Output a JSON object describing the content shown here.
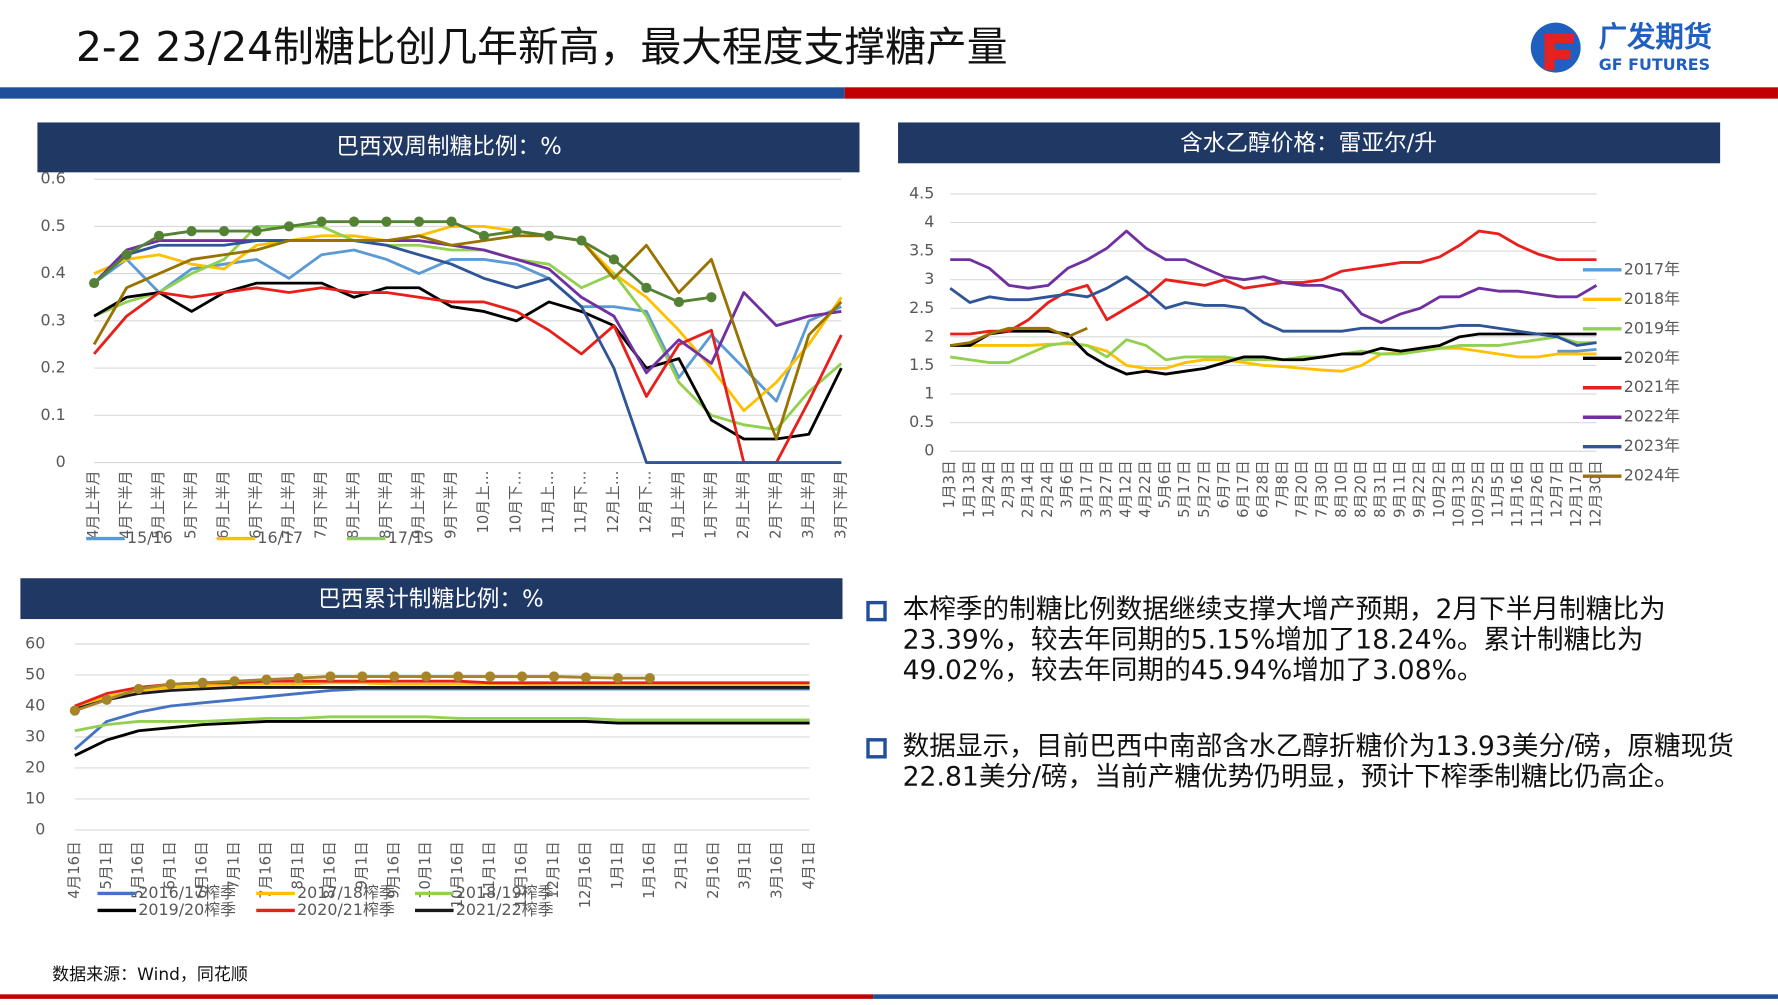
{
  "header": {
    "title": "2-2 23/24制糖比创几年新高，最大程度支撑糖产量",
    "logo_name": "广发期货",
    "logo_en": "GF FUTURES"
  },
  "bullets": [
    "本榨季的制糖比例数据继续支撑大增产预期，2月下半月制糖比为23.39%，较去年同期的5.15%增加了18.24%。累计制糖比为49.02%，较去年同期的45.94%增加了3.08%。",
    "数据显示，目前巴西中南部含水乙醇折糖价为13.93美分/磅，原糖现货22.81美分/磅，当前产糖优势仍明显，预计下榨季制糖比仍高企。"
  ],
  "source": "数据来源：Wind，同花顺",
  "chart_data": [
    {
      "type": "line",
      "title": "巴西双周制糖比例：%",
      "legend": "bottom",
      "categories": [
        "4月上半月",
        "4月下半月",
        "5月上半月",
        "5月下半月",
        "6月上半月",
        "6月下半月",
        "7月上半月",
        "7月下半月",
        "8月上半月",
        "8月下半月",
        "9月上半月",
        "9月下半月",
        "10月上…",
        "10月下…",
        "11月上…",
        "11月下…",
        "12月上…",
        "12月下…",
        "1月上半月",
        "1月下半月",
        "2月上半月",
        "2月下半月",
        "3月上半月",
        "3月下半月"
      ],
      "ylim": [
        0,
        0.6
      ],
      "yticks": [
        0,
        0.1,
        0.2,
        0.3,
        0.4,
        0.5,
        0.6
      ],
      "series": [
        {
          "name": "15/16",
          "color": "#5b9bd5",
          "values": [
            0.38,
            0.43,
            0.36,
            0.41,
            0.42,
            0.43,
            0.39,
            0.44,
            0.45,
            0.43,
            0.4,
            0.43,
            0.43,
            0.42,
            0.39,
            0.33,
            0.33,
            0.32,
            0.18,
            0.27,
            0.2,
            0.13,
            0.3,
            0.33
          ]
        },
        {
          "name": "16/17",
          "color": "#ffc000",
          "values": [
            0.4,
            0.43,
            0.44,
            0.42,
            0.41,
            0.46,
            0.47,
            0.48,
            0.48,
            0.47,
            0.48,
            0.5,
            0.5,
            0.49,
            0.48,
            0.47,
            0.4,
            0.35,
            0.28,
            0.2,
            0.11,
            0.17,
            0.25,
            0.35
          ]
        },
        {
          "name": "17/1S",
          "color": "#92d050",
          "values": [
            0.31,
            0.34,
            0.36,
            0.4,
            0.43,
            0.5,
            0.5,
            0.5,
            0.47,
            0.46,
            0.46,
            0.45,
            0.45,
            0.43,
            0.42,
            0.37,
            0.4,
            0.31,
            0.17,
            0.1,
            0.08,
            0.07,
            0.15,
            0.21
          ]
        },
        {
          "color": "#000000",
          "values": [
            0.31,
            0.35,
            0.36,
            0.32,
            0.36,
            0.38,
            0.38,
            0.38,
            0.35,
            0.37,
            0.37,
            0.33,
            0.32,
            0.3,
            0.34,
            0.32,
            0.29,
            0.2,
            0.22,
            0.09,
            0.05,
            0.05,
            0.06,
            0.2
          ]
        },
        {
          "color": "#e8201c",
          "values": [
            0.23,
            0.31,
            0.36,
            0.35,
            0.36,
            0.37,
            0.36,
            0.37,
            0.36,
            0.36,
            0.35,
            0.34,
            0.34,
            0.32,
            0.28,
            0.23,
            0.29,
            0.14,
            0.25,
            0.28,
            0,
            0,
            0.13,
            0.27
          ]
        },
        {
          "color": "#7030a0",
          "values": [
            0.38,
            0.45,
            0.47,
            0.47,
            0.47,
            0.47,
            0.47,
            0.47,
            0.47,
            0.47,
            0.47,
            0.46,
            0.45,
            0.43,
            0.41,
            0.35,
            0.31,
            0.19,
            0.26,
            0.21,
            0.36,
            0.29,
            0.31,
            0.32
          ]
        },
        {
          "color": "#2f5597",
          "values": [
            0.38,
            0.44,
            0.46,
            0.46,
            0.46,
            0.47,
            0.47,
            0.47,
            0.47,
            0.46,
            0.44,
            0.42,
            0.39,
            0.37,
            0.39,
            0.33,
            0.2,
            0,
            0,
            0,
            0,
            0,
            0,
            0
          ]
        },
        {
          "color": "#997300",
          "values": [
            0.25,
            0.37,
            0.4,
            0.43,
            0.44,
            0.45,
            0.47,
            0.47,
            0.47,
            0.47,
            0.48,
            0.46,
            0.47,
            0.48,
            0.48,
            0.47,
            0.39,
            0.46,
            0.36,
            0.43,
            0.23,
            0.05,
            0.27,
            0.34
          ]
        },
        {
          "color": "#548235",
          "marker": "circle",
          "values": [
            0.38,
            0.44,
            0.48,
            0.49,
            0.49,
            0.49,
            0.5,
            0.51,
            0.51,
            0.51,
            0.51,
            0.51,
            0.48,
            0.49,
            0.48,
            0.47,
            0.43,
            0.37,
            0.34,
            0.35,
            null,
            null,
            null,
            null
          ]
        }
      ]
    },
    {
      "type": "line",
      "title": "含水乙醇价格：雷亚尔/升",
      "legend": "right",
      "categories": [
        "1月3日",
        "1月13日",
        "1月24日",
        "2月3日",
        "2月14日",
        "2月24日",
        "3月6日",
        "3月17日",
        "3月27日",
        "4月12日",
        "4月22日",
        "5月6日",
        "5月17日",
        "5月27日",
        "6月7日",
        "6月17日",
        "6月28日",
        "7月8日",
        "7月20日",
        "7月30日",
        "8月10日",
        "8月20日",
        "8月31日",
        "9月11日",
        "9月22日",
        "10月2日",
        "10月13日",
        "10月25日",
        "11月5日",
        "11月16日",
        "11月26日",
        "12月7日",
        "12月17日",
        "12月30日"
      ],
      "ylim": [
        0,
        4.5
      ],
      "yticks": [
        0,
        0.5,
        1,
        1.5,
        2,
        2.5,
        3,
        3.5,
        4,
        4.5
      ],
      "series": [
        {
          "name": "2017年",
          "color": "#5b9bd5",
          "values": [
            null,
            null,
            null,
            null,
            null,
            null,
            null,
            null,
            null,
            null,
            null,
            null,
            null,
            null,
            null,
            null,
            null,
            null,
            null,
            null,
            null,
            null,
            null,
            null,
            null,
            null,
            null,
            null,
            null,
            null,
            null,
            1.75,
            1.75,
            1.78
          ]
        },
        {
          "name": "2018年",
          "color": "#ffc000",
          "values": [
            1.85,
            1.85,
            1.85,
            1.85,
            1.85,
            1.87,
            1.88,
            1.85,
            1.75,
            1.5,
            1.45,
            1.45,
            1.55,
            1.6,
            1.6,
            1.55,
            1.5,
            1.48,
            1.45,
            1.42,
            1.4,
            1.5,
            1.7,
            1.72,
            1.75,
            1.8,
            1.8,
            1.75,
            1.7,
            1.65,
            1.65,
            1.7,
            1.7,
            1.7
          ]
        },
        {
          "name": "2019年",
          "color": "#92d050",
          "values": [
            1.65,
            1.6,
            1.55,
            1.55,
            1.7,
            1.85,
            1.9,
            1.85,
            1.65,
            1.95,
            1.85,
            1.6,
            1.65,
            1.65,
            1.65,
            1.6,
            1.6,
            1.6,
            1.65,
            1.65,
            1.7,
            1.75,
            1.7,
            1.7,
            1.75,
            1.8,
            1.85,
            1.85,
            1.85,
            1.9,
            1.95,
            2.0,
            1.9,
            1.9
          ]
        },
        {
          "name": "2020年",
          "color": "#000000",
          "values": [
            1.85,
            1.85,
            2.05,
            2.1,
            2.1,
            2.1,
            2.05,
            1.7,
            1.5,
            1.35,
            1.4,
            1.35,
            1.4,
            1.45,
            1.55,
            1.65,
            1.65,
            1.6,
            1.6,
            1.65,
            1.7,
            1.7,
            1.8,
            1.75,
            1.8,
            1.85,
            2.0,
            2.05,
            2.05,
            2.05,
            2.05,
            2.05,
            2.05,
            2.05
          ]
        },
        {
          "name": "2021年",
          "color": "#e8201c",
          "values": [
            2.05,
            2.05,
            2.1,
            2.1,
            2.3,
            2.6,
            2.8,
            2.9,
            2.3,
            2.5,
            2.7,
            3.0,
            2.95,
            2.9,
            3.0,
            2.85,
            2.9,
            2.95,
            2.95,
            3.0,
            3.15,
            3.2,
            3.25,
            3.3,
            3.3,
            3.4,
            3.6,
            3.85,
            3.8,
            3.6,
            3.45,
            3.35,
            3.35,
            3.35
          ]
        },
        {
          "name": "2022年",
          "color": "#7030a0",
          "values": [
            3.35,
            3.35,
            3.2,
            2.9,
            2.85,
            2.9,
            3.2,
            3.35,
            3.55,
            3.85,
            3.55,
            3.35,
            3.35,
            3.2,
            3.05,
            3.0,
            3.05,
            2.95,
            2.9,
            2.9,
            2.8,
            2.4,
            2.25,
            2.4,
            2.5,
            2.7,
            2.7,
            2.85,
            2.8,
            2.8,
            2.75,
            2.7,
            2.7,
            2.9
          ]
        },
        {
          "name": "2023年",
          "color": "#2f5597",
          "values": [
            2.85,
            2.6,
            2.7,
            2.65,
            2.65,
            2.7,
            2.75,
            2.7,
            2.85,
            3.05,
            2.8,
            2.5,
            2.6,
            2.55,
            2.55,
            2.5,
            2.25,
            2.1,
            2.1,
            2.1,
            2.1,
            2.15,
            2.15,
            2.15,
            2.15,
            2.15,
            2.2,
            2.2,
            2.15,
            2.1,
            2.05,
            2.0,
            1.85,
            1.9
          ]
        },
        {
          "name": "2024年",
          "color": "#997300",
          "values": [
            1.85,
            1.9,
            2.05,
            2.15,
            2.15,
            2.15,
            2.0,
            2.15,
            null,
            null,
            null,
            null,
            null,
            null,
            null,
            null,
            null,
            null,
            null,
            null,
            null,
            null,
            null,
            null,
            null,
            null,
            null,
            null,
            null,
            null,
            null,
            null,
            null,
            null
          ]
        }
      ]
    },
    {
      "type": "line",
      "title": "巴西累计制糖比例：%",
      "legend": "bottom",
      "categories": [
        "4月16日",
        "5月1日",
        "5月16日",
        "6月1日",
        "6月16日",
        "7月1日",
        "7月16日",
        "8月1日",
        "8月16日",
        "9月1日",
        "9月16日",
        "10月1日",
        "10月16日",
        "11月1日",
        "11月16日",
        "12月1日",
        "12月16日",
        "1月1日",
        "1月16日",
        "2月1日",
        "2月16日",
        "3月1日",
        "3月16日",
        "4月1日"
      ],
      "ylim": [
        0,
        60
      ],
      "yticks": [
        0,
        10,
        20,
        30,
        40,
        50,
        60
      ],
      "series": [
        {
          "name": "2016/17榨季",
          "color": "#4472c4",
          "values": [
            26,
            35,
            38,
            40,
            41,
            42,
            43,
            44,
            45,
            45.5,
            45.5,
            45.5,
            45.5,
            45.5,
            45.5,
            45.5,
            45.5,
            45.5,
            45.5,
            45.5,
            45.5,
            45.5,
            45.5,
            45.5
          ]
        },
        {
          "name": "2017/18榨季",
          "color": "#ffc000",
          "values": [
            40,
            43,
            45,
            46,
            46.5,
            47,
            47,
            47,
            47.5,
            47.5,
            47,
            47,
            47,
            47,
            47,
            46.5,
            46.5,
            46.5,
            46.5,
            46.5,
            46.5,
            46.5,
            46.5,
            46.5
          ]
        },
        {
          "name": "2018/19榨季",
          "color": "#92d050",
          "values": [
            32,
            34,
            35,
            35,
            35,
            35.5,
            36,
            36,
            36.5,
            36.5,
            36.5,
            36.5,
            36,
            36,
            36,
            36,
            36,
            35.5,
            35.5,
            35.5,
            35.5,
            35.5,
            35.5,
            35.5
          ]
        },
        {
          "name": "2019/20榨季",
          "color": "#000000",
          "values": [
            24,
            29,
            32,
            33,
            34,
            34.5,
            35,
            35,
            35,
            35,
            35,
            35,
            35,
            35,
            35,
            35,
            35,
            34.5,
            34.5,
            34.5,
            34.5,
            34.5,
            34.5,
            34.5
          ]
        },
        {
          "name": "2020/21榨季",
          "color": "#e8201c",
          "values": [
            40,
            44,
            46,
            47,
            47.5,
            47.5,
            48,
            48,
            48,
            48,
            48,
            48,
            48,
            47.5,
            47.5,
            47.5,
            47.5,
            47.5,
            47.5,
            47.5,
            47.5,
            47.5,
            47.5,
            47.5
          ]
        },
        {
          "name": "2021/22榨季",
          "color": "#1a1a1a",
          "values": [
            39,
            42,
            44,
            45,
            45.5,
            46,
            46,
            46,
            46,
            46,
            46,
            46,
            46,
            46,
            46,
            46,
            46,
            46,
            46,
            46,
            46,
            46,
            46,
            46
          ]
        },
        {
          "color": "#a5842a",
          "marker": "circle",
          "values": [
            38.5,
            42,
            45.5,
            47,
            47.5,
            48,
            48.5,
            49,
            49.5,
            49.5,
            49.5,
            49.5,
            49.5,
            49.5,
            49.5,
            49.5,
            49.2,
            49,
            49,
            null,
            null,
            null,
            null,
            null
          ]
        }
      ]
    }
  ]
}
